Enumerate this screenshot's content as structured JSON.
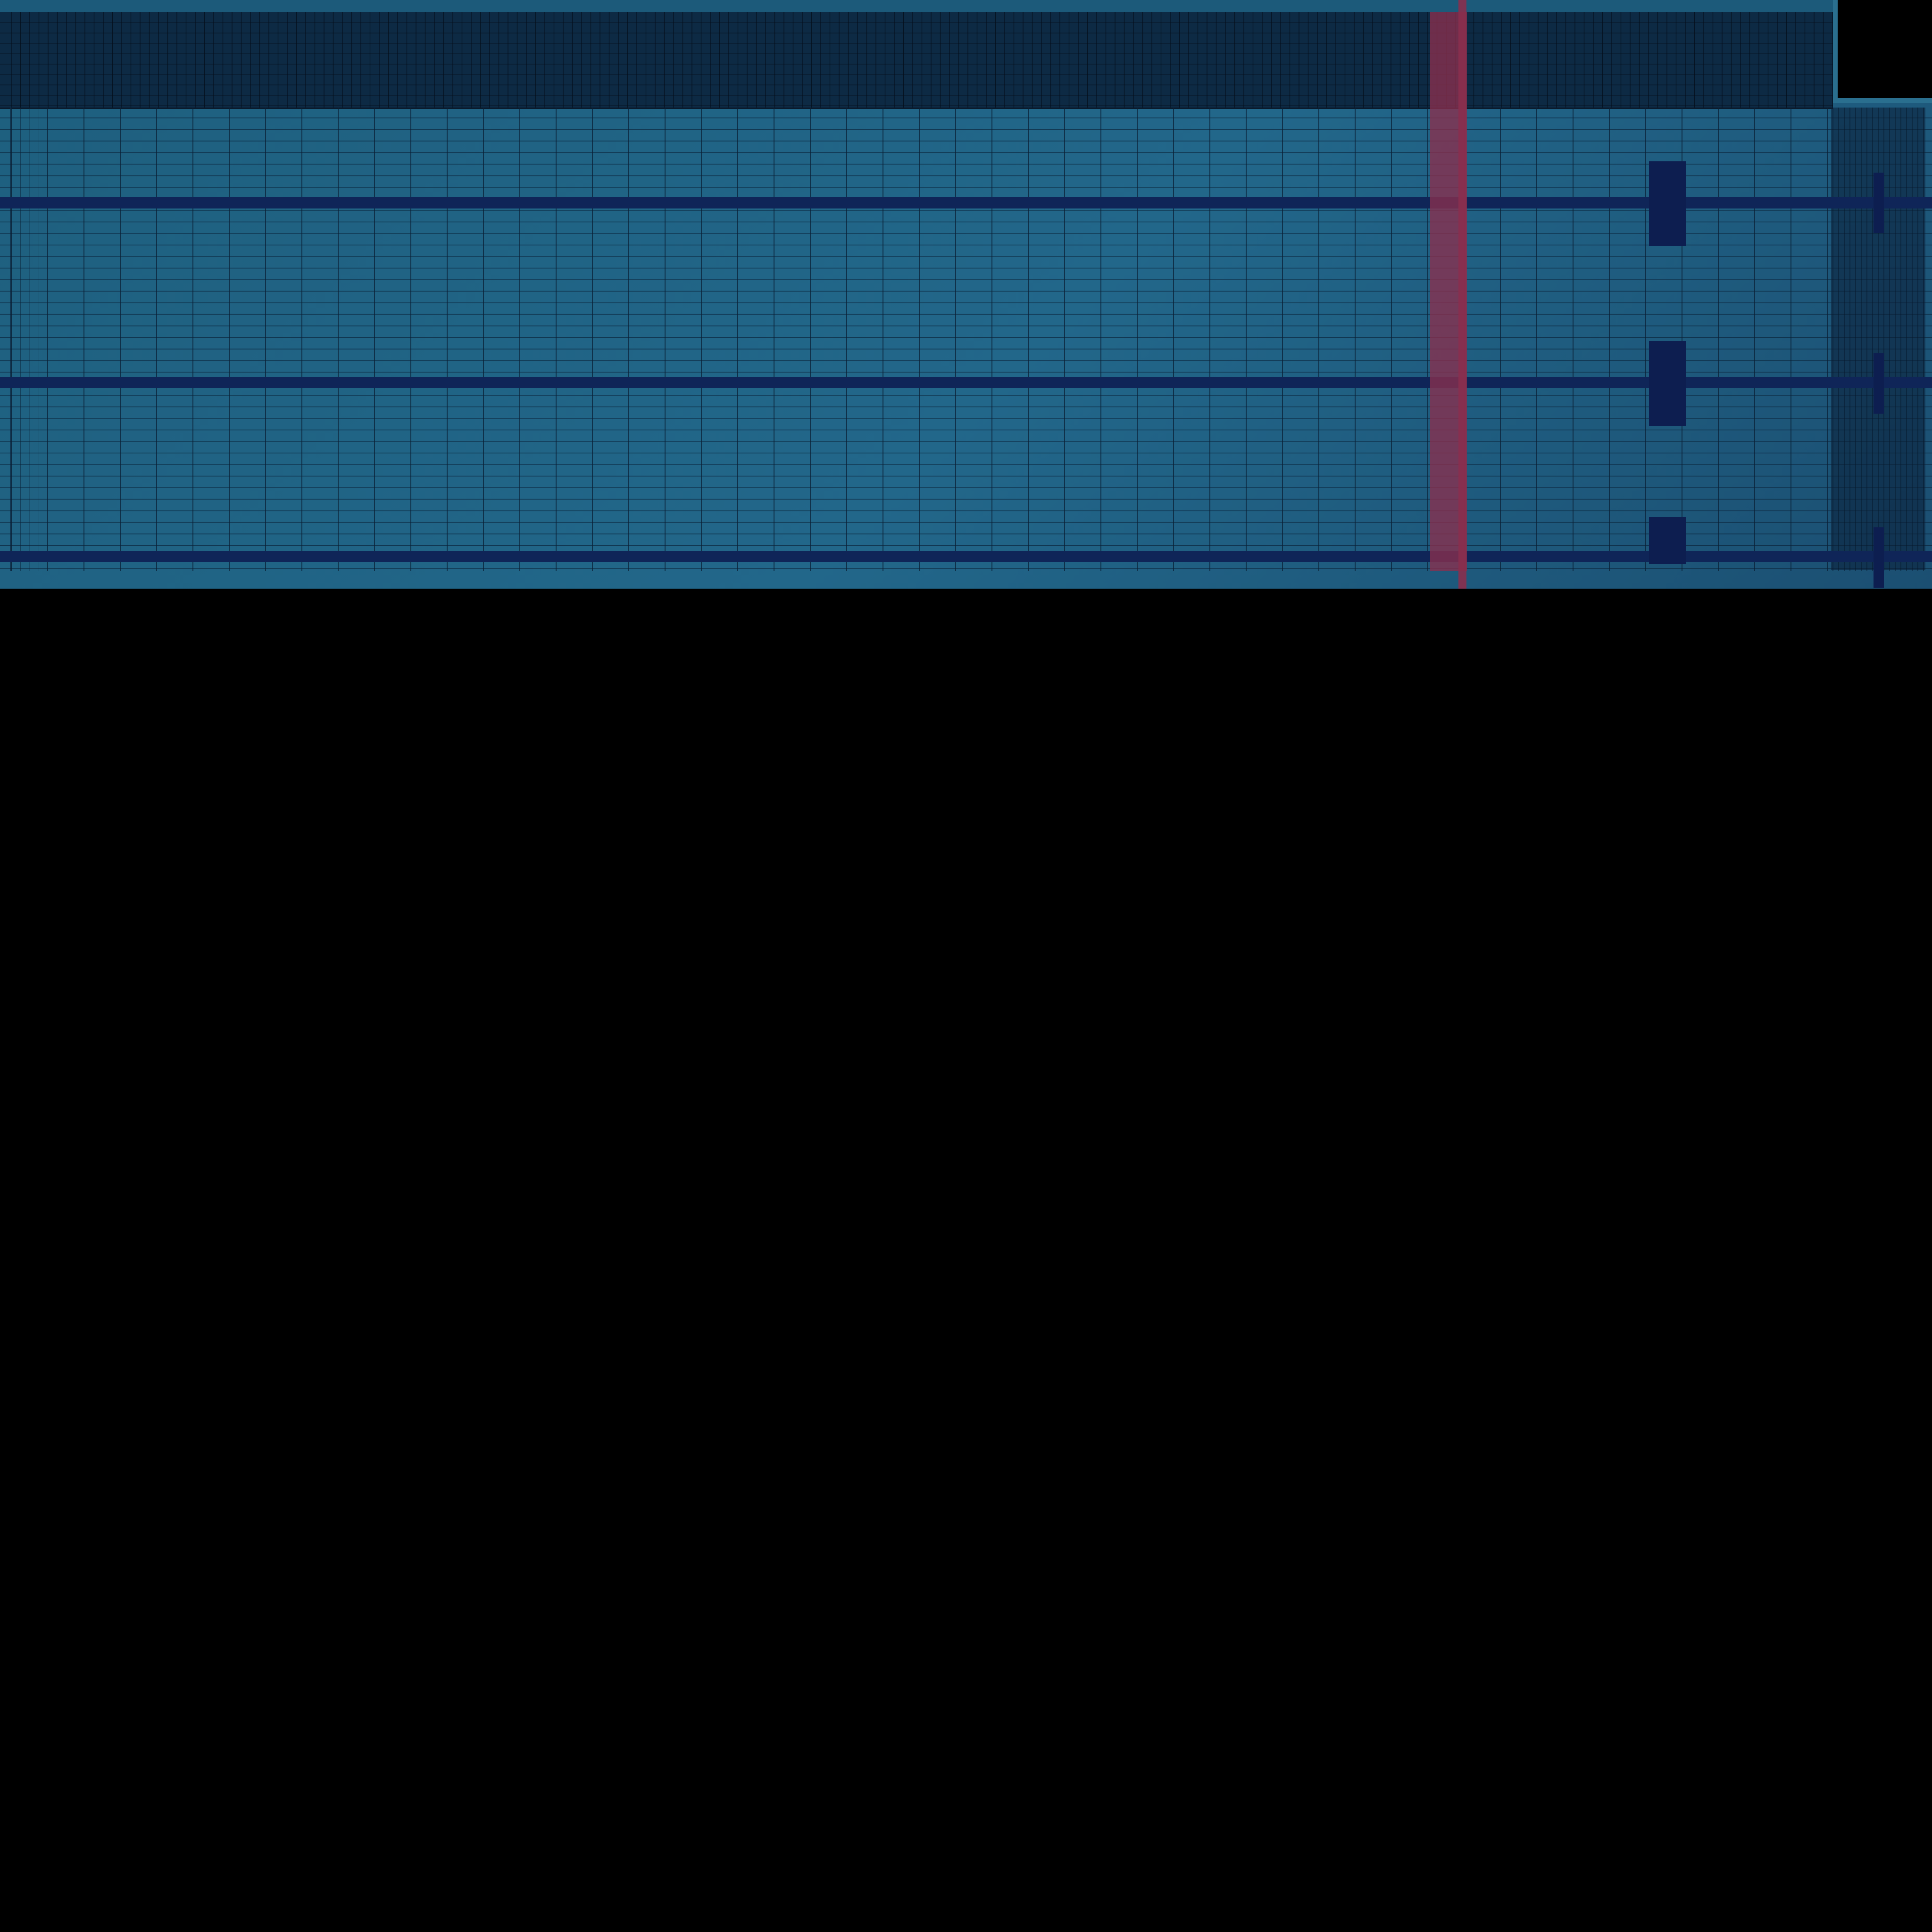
{
  "theme": {
    "background": "#000000",
    "canvas": "#22678a",
    "header_band": "#0d2a44",
    "grid_line": "#0a2036",
    "track_bar": "#0f2558",
    "playhead": "#8a2f4e",
    "marker": "#0d1e50"
  },
  "track_lines": {
    "count": 3
  },
  "block_markers": {
    "count": 3
  },
  "tick_markers": {
    "count": 3
  },
  "playhead": {
    "icon": "playhead-bar"
  }
}
